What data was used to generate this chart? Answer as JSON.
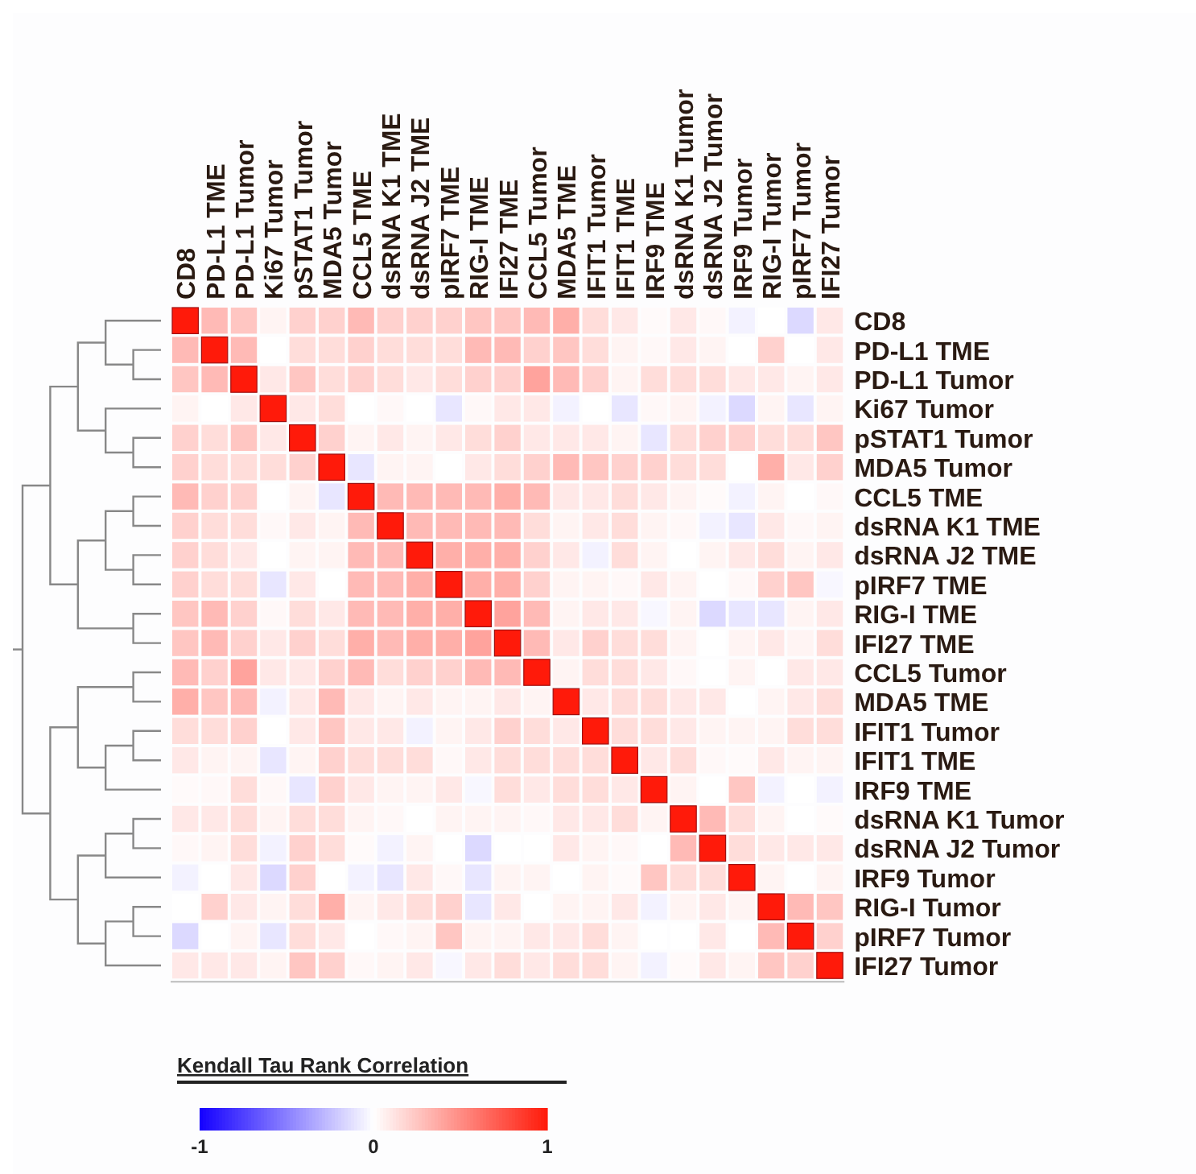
{
  "chart_data": {
    "type": "heatmap",
    "clabel": "Kendall Tau Rank Correlation",
    "clim": [
      -1,
      1
    ],
    "cticks": [
      -1,
      0,
      1
    ],
    "categories": [
      "CD8",
      "PD-L1 TME",
      "PD-L1 Tumor",
      "Ki67 Tumor",
      "pSTAT1 Tumor",
      "MDA5 Tumor",
      "CCL5 TME",
      "dsRNA K1 TME",
      "dsRNA J2 TME",
      "pIRF7 TME",
      "RIG-I TME",
      "IFI27 TME",
      "CCL5 Tumor",
      "MDA5 TME",
      "IFIT1 Tumor",
      "IFIT1 TME",
      "IRF9 TME",
      "dsRNA K1 Tumor",
      "dsRNA J2 Tumor",
      "IRF9 Tumor",
      "RIG-I Tumor",
      "pIRF7 Tumor",
      "IFI27 Tumor"
    ],
    "y_categories": [
      "CD8",
      "PD-L1 TME",
      "PD-L1 Tumor",
      "Ki67 Tumor",
      "pSTAT1 Tumor",
      "MDA5 Tumor",
      "CCL5 TME",
      "dsRNA K1 TME",
      "dsRNA J2 TME",
      "pIRF7 TME",
      "RIG-I TME",
      "IFI27 TME",
      "CCL5 Tumor",
      "MDA5 TME",
      "IFIT1 Tumor",
      "IFIT1 TME",
      "IRF9 TME",
      "dsRNA K1 Tumor",
      "dsRNA J2 Tumor",
      "IRF9 Tumor",
      "RIG-I Tumor",
      "pIRF7 Tumor",
      "IFI27 Tumor"
    ],
    "cells": [
      [
        1,
        0.3,
        0.25,
        0.05,
        0.2,
        0.2,
        0.3,
        0.2,
        0.2,
        0.2,
        0.25,
        0.25,
        0.3,
        0.35,
        0.15,
        0.1,
        0.02,
        0.1,
        0.03,
        -0.05,
        0,
        -0.15,
        0.1
      ],
      [
        0.3,
        1,
        0.3,
        0,
        0.15,
        0.15,
        0.2,
        0.15,
        0.15,
        0.15,
        0.3,
        0.3,
        0.2,
        0.25,
        0.15,
        0.05,
        0.03,
        0.1,
        0.05,
        0,
        0.2,
        0,
        0.1
      ],
      [
        0.25,
        0.3,
        1,
        0.1,
        0.25,
        0.15,
        0.2,
        0.15,
        0.1,
        0.15,
        0.2,
        0.2,
        0.4,
        0.3,
        0.2,
        0.05,
        0.15,
        0.15,
        0.15,
        0.1,
        0.1,
        0.05,
        0.1
      ],
      [
        0.05,
        0,
        0.1,
        1,
        0.1,
        0.15,
        0,
        0.03,
        0,
        -0.1,
        0.03,
        0.1,
        0.1,
        -0.05,
        0,
        -0.1,
        0.03,
        0.05,
        -0.05,
        -0.15,
        0.05,
        -0.1,
        0.05
      ],
      [
        0.2,
        0.15,
        0.25,
        0.1,
        1,
        0.2,
        0.05,
        0.1,
        0.05,
        0.1,
        0.15,
        0.2,
        0.1,
        0.1,
        0.1,
        0.05,
        -0.1,
        0.15,
        0.2,
        0.2,
        0.15,
        0.15,
        0.25
      ],
      [
        0.2,
        0.15,
        0.15,
        0.15,
        0.2,
        1,
        -0.1,
        0.05,
        0.05,
        0,
        0.1,
        0.15,
        0.2,
        0.3,
        0.25,
        0.2,
        0.2,
        0.15,
        0.15,
        0,
        0.35,
        0.1,
        0.2
      ],
      [
        0.3,
        0.2,
        0.2,
        0,
        0.05,
        -0.1,
        1,
        0.3,
        0.3,
        0.3,
        0.3,
        0.35,
        0.3,
        0.1,
        0.1,
        0.15,
        0.1,
        0.05,
        0.02,
        -0.05,
        0.05,
        0,
        0.03
      ],
      [
        0.2,
        0.15,
        0.15,
        0.03,
        0.1,
        0.05,
        0.3,
        1,
        0.3,
        0.3,
        0.3,
        0.3,
        0.15,
        0.05,
        0.1,
        0.15,
        0.05,
        0.03,
        -0.05,
        -0.1,
        0.1,
        0.03,
        0.05
      ],
      [
        0.2,
        0.15,
        0.1,
        0,
        0.05,
        0.05,
        0.3,
        0.3,
        1,
        0.35,
        0.35,
        0.35,
        0.2,
        0.1,
        -0.05,
        0.15,
        0.05,
        0,
        0.05,
        0.1,
        0.15,
        0.05,
        0.1
      ],
      [
        0.2,
        0.15,
        0.15,
        -0.1,
        0.1,
        0,
        0.3,
        0.3,
        0.35,
        1,
        0.35,
        0.35,
        0.2,
        0.05,
        0.05,
        0.03,
        0.1,
        0.05,
        0,
        0.03,
        0.2,
        0.25,
        -0.03
      ],
      [
        0.25,
        0.3,
        0.2,
        0.03,
        0.15,
        0.1,
        0.3,
        0.3,
        0.35,
        0.35,
        1,
        0.4,
        0.3,
        0.05,
        0.1,
        0.1,
        -0.03,
        0.05,
        -0.15,
        -0.1,
        -0.1,
        0.05,
        0.1
      ],
      [
        0.25,
        0.3,
        0.2,
        0.1,
        0.2,
        0.15,
        0.35,
        0.3,
        0.35,
        0.35,
        0.4,
        1,
        0.3,
        0.1,
        0.2,
        0.15,
        0.15,
        0.05,
        0,
        0.05,
        0.1,
        0.05,
        0.15
      ],
      [
        0.3,
        0.2,
        0.4,
        0.1,
        0.1,
        0.2,
        0.3,
        0.15,
        0.2,
        0.2,
        0.3,
        0.3,
        1,
        0.05,
        0.15,
        0.15,
        0.1,
        0.03,
        0,
        0.05,
        0,
        0.1,
        0.1
      ],
      [
        0.35,
        0.25,
        0.3,
        -0.05,
        0.1,
        0.3,
        0.1,
        0.05,
        0.1,
        0.05,
        0.05,
        0.1,
        0.05,
        1,
        0.1,
        0.15,
        0.15,
        0.1,
        0.1,
        0,
        0.05,
        0.1,
        0.15
      ],
      [
        0.15,
        0.15,
        0.2,
        0,
        0.1,
        0.25,
        0.1,
        0.1,
        -0.05,
        0.05,
        0.1,
        0.2,
        0.15,
        0.1,
        1,
        0.15,
        0.15,
        0.1,
        0.05,
        0.05,
        0.05,
        0.15,
        0.15
      ],
      [
        0.1,
        0.05,
        0.05,
        -0.1,
        0.05,
        0.2,
        0.15,
        0.15,
        0.15,
        0.03,
        0.1,
        0.15,
        0.15,
        0.15,
        0.15,
        1,
        0.1,
        0.15,
        0.03,
        0.02,
        0.1,
        0.05,
        0.05
      ],
      [
        0.02,
        0.03,
        0.15,
        0.03,
        -0.1,
        0.2,
        0.1,
        0.05,
        0.05,
        0.1,
        -0.03,
        0.15,
        0.1,
        0.15,
        0.15,
        0.1,
        1,
        0.05,
        0,
        0.25,
        -0.05,
        0,
        -0.05
      ],
      [
        0.1,
        0.1,
        0.15,
        0.05,
        0.15,
        0.15,
        0.05,
        0.03,
        0,
        0.05,
        0.05,
        0.05,
        0.03,
        0.1,
        0.1,
        0.15,
        0.05,
        1,
        0.3,
        0.15,
        0.05,
        0,
        0.02
      ],
      [
        0.03,
        0.05,
        0.15,
        -0.05,
        0.2,
        0.15,
        0.02,
        -0.05,
        0.05,
        0,
        -0.15,
        0,
        0,
        0.1,
        0.05,
        0.03,
        0,
        0.3,
        1,
        0.15,
        0.1,
        0.1,
        0.1
      ],
      [
        -0.05,
        0,
        0.1,
        -0.15,
        0.2,
        0,
        -0.05,
        -0.1,
        0.1,
        0.03,
        -0.1,
        0.05,
        0.05,
        0,
        0.05,
        0.02,
        0.25,
        0.15,
        0.15,
        1,
        0.05,
        0,
        0.05
      ],
      [
        0,
        0.2,
        0.1,
        0.05,
        0.15,
        0.35,
        0.05,
        0.1,
        0.15,
        0.2,
        -0.1,
        0.1,
        0,
        0.05,
        0.05,
        0.1,
        -0.05,
        0.05,
        0.1,
        0.05,
        1,
        0.3,
        0.25
      ],
      [
        -0.15,
        0,
        0.05,
        -0.1,
        0.15,
        0.1,
        0,
        0.03,
        0.05,
        0.25,
        0.05,
        0.05,
        0.1,
        0.1,
        0.15,
        0.05,
        0,
        0,
        0.1,
        0,
        0.3,
        1,
        0.2
      ],
      [
        0.1,
        0.1,
        0.1,
        0.05,
        0.25,
        0.2,
        0.03,
        0.05,
        0.1,
        -0.03,
        0.1,
        0.15,
        0.1,
        0.15,
        0.15,
        0.05,
        -0.05,
        0.02,
        0.1,
        0.05,
        0.25,
        0.2,
        1
      ]
    ]
  }
}
